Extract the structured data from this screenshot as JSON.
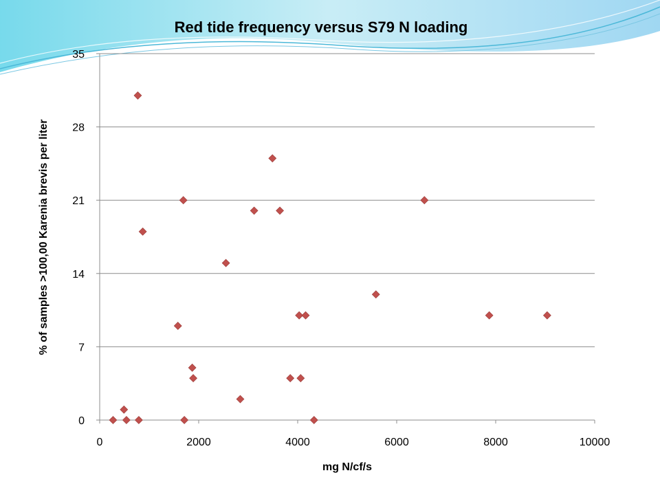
{
  "chart_data": {
    "type": "scatter",
    "title": "Red tide frequency versus S79 N loading",
    "xlabel": "mg N/cf/s",
    "ylabel": "% of samples >100,00 Karenia brevis per liter",
    "xlim": [
      0,
      10000
    ],
    "ylim": [
      0,
      35
    ],
    "xticks": [
      0,
      2000,
      4000,
      6000,
      8000,
      10000
    ],
    "yticks": [
      0,
      7,
      14,
      21,
      28,
      35
    ],
    "grid": "horizontal",
    "legend": "none",
    "marker": "diamond",
    "marker_color": "#C0504D",
    "points": [
      {
        "x": 270,
        "y": 0
      },
      {
        "x": 490,
        "y": 1
      },
      {
        "x": 540,
        "y": 0
      },
      {
        "x": 770,
        "y": 31
      },
      {
        "x": 790,
        "y": 0
      },
      {
        "x": 870,
        "y": 18
      },
      {
        "x": 1580,
        "y": 9
      },
      {
        "x": 1690,
        "y": 21
      },
      {
        "x": 1710,
        "y": 0
      },
      {
        "x": 1870,
        "y": 5
      },
      {
        "x": 1890,
        "y": 4
      },
      {
        "x": 2550,
        "y": 15
      },
      {
        "x": 2840,
        "y": 2
      },
      {
        "x": 3120,
        "y": 20
      },
      {
        "x": 3490,
        "y": 25
      },
      {
        "x": 3640,
        "y": 20
      },
      {
        "x": 3850,
        "y": 4
      },
      {
        "x": 4030,
        "y": 10
      },
      {
        "x": 4060,
        "y": 4
      },
      {
        "x": 4160,
        "y": 10
      },
      {
        "x": 4330,
        "y": 0
      },
      {
        "x": 5580,
        "y": 12
      },
      {
        "x": 6560,
        "y": 21
      },
      {
        "x": 7870,
        "y": 10
      },
      {
        "x": 9040,
        "y": 10
      }
    ]
  }
}
